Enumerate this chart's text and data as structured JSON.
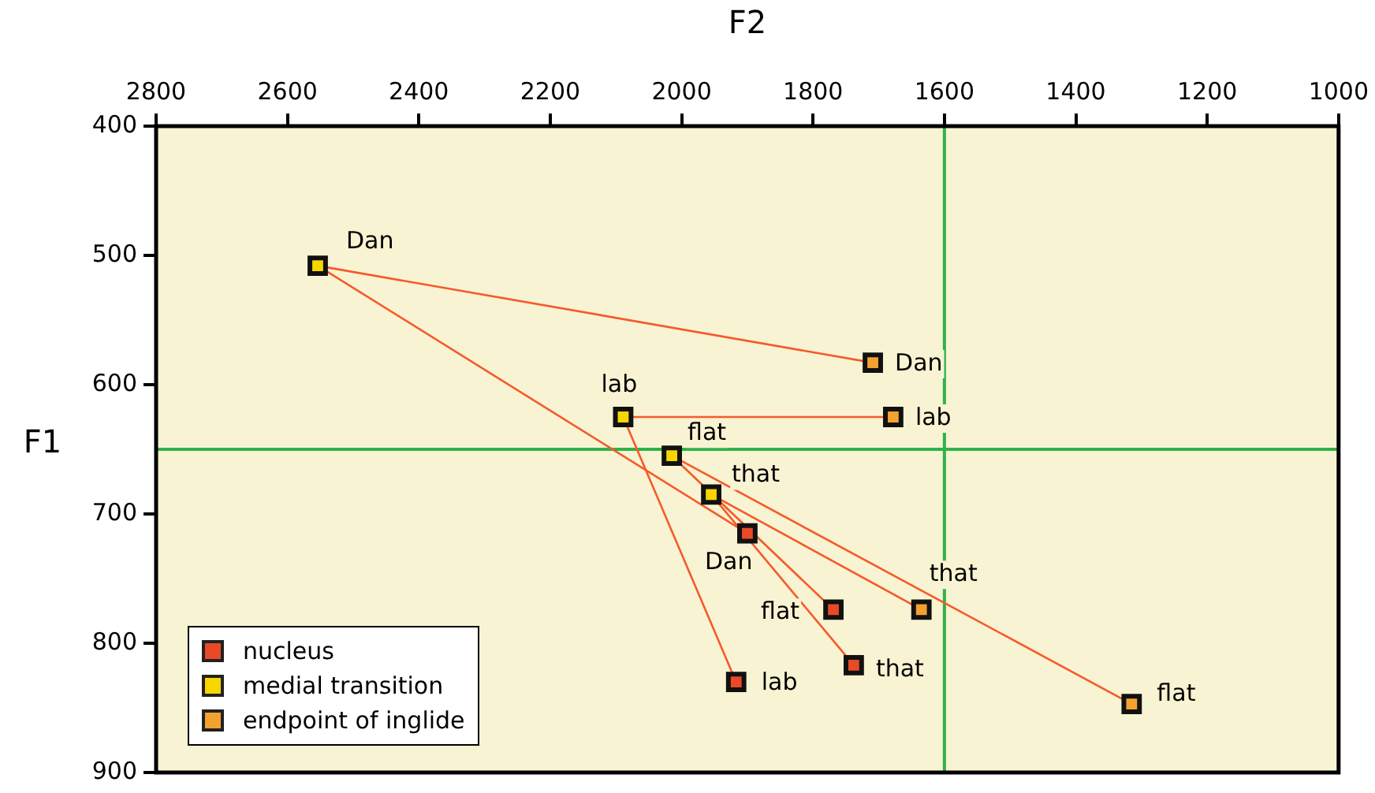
{
  "chart_data": {
    "type": "scatter",
    "xlabel": "F2",
    "ylabel": "F1",
    "xlim": [
      2800,
      1000
    ],
    "ylim": [
      900,
      400
    ],
    "xticks": [
      2800,
      2600,
      2400,
      2200,
      2000,
      1800,
      1600,
      1400,
      1200,
      1000
    ],
    "yticks": [
      400,
      500,
      600,
      700,
      800,
      900
    ],
    "grid": false,
    "legend": "bottom left",
    "marker": "square",
    "series": [
      {
        "type": "line",
        "marker": "none",
        "color": "#f55a2c",
        "x": [
          1900,
          2554,
          1709
        ],
        "values": [
          715,
          508,
          583
        ]
      },
      {
        "type": "line",
        "marker": "none",
        "color": "#f55a2c",
        "x": [
          1917,
          2089,
          1678
        ],
        "values": [
          830,
          625,
          625
        ]
      },
      {
        "type": "line",
        "marker": "none",
        "color": "#f55a2c",
        "x": [
          1769,
          2015,
          1315
        ],
        "values": [
          774,
          655,
          847
        ]
      },
      {
        "type": "line",
        "marker": "none",
        "color": "#f55a2c",
        "x": [
          1738,
          1955,
          1635
        ],
        "values": [
          817,
          685,
          774
        ]
      },
      {
        "name": "nucleus",
        "color": "#e84a27",
        "x": [
          1900,
          1917,
          1769,
          1738
        ],
        "values": [
          715,
          830,
          774,
          817
        ]
      },
      {
        "name": "medial transition",
        "color": "#f7d600",
        "x": [
          2554,
          2089,
          2015,
          1955
        ],
        "values": [
          508,
          625,
          655,
          685
        ]
      },
      {
        "name": "endpoint of inglide",
        "color": "#f4a22f",
        "x": [
          1709,
          1678,
          1315,
          1635
        ],
        "values": [
          583,
          625,
          847,
          774
        ]
      }
    ],
    "ref_lines": [
      {
        "axis": "x",
        "value": 1600,
        "color": "#2db34a"
      },
      {
        "axis": "y",
        "value": 650,
        "color": "#2db34a"
      }
    ],
    "annotations": [
      {
        "text": "Dan",
        "x": 2554,
        "y": 508
      },
      {
        "text": "Dan",
        "x": 1709,
        "y": 583
      },
      {
        "text": "Dan",
        "x": 1900,
        "y": 715
      },
      {
        "text": "lab",
        "x": 2089,
        "y": 625
      },
      {
        "text": "lab",
        "x": 1678,
        "y": 625
      },
      {
        "text": "lab",
        "x": 1917,
        "y": 830
      },
      {
        "text": "flat",
        "x": 2015,
        "y": 655
      },
      {
        "text": "flat",
        "x": 1769,
        "y": 774
      },
      {
        "text": "flat",
        "x": 1315,
        "y": 847
      },
      {
        "text": "that",
        "x": 1955,
        "y": 685
      },
      {
        "text": "that",
        "x": 1738,
        "y": 817
      },
      {
        "text": "that",
        "x": 1635,
        "y": 774
      }
    ]
  }
}
